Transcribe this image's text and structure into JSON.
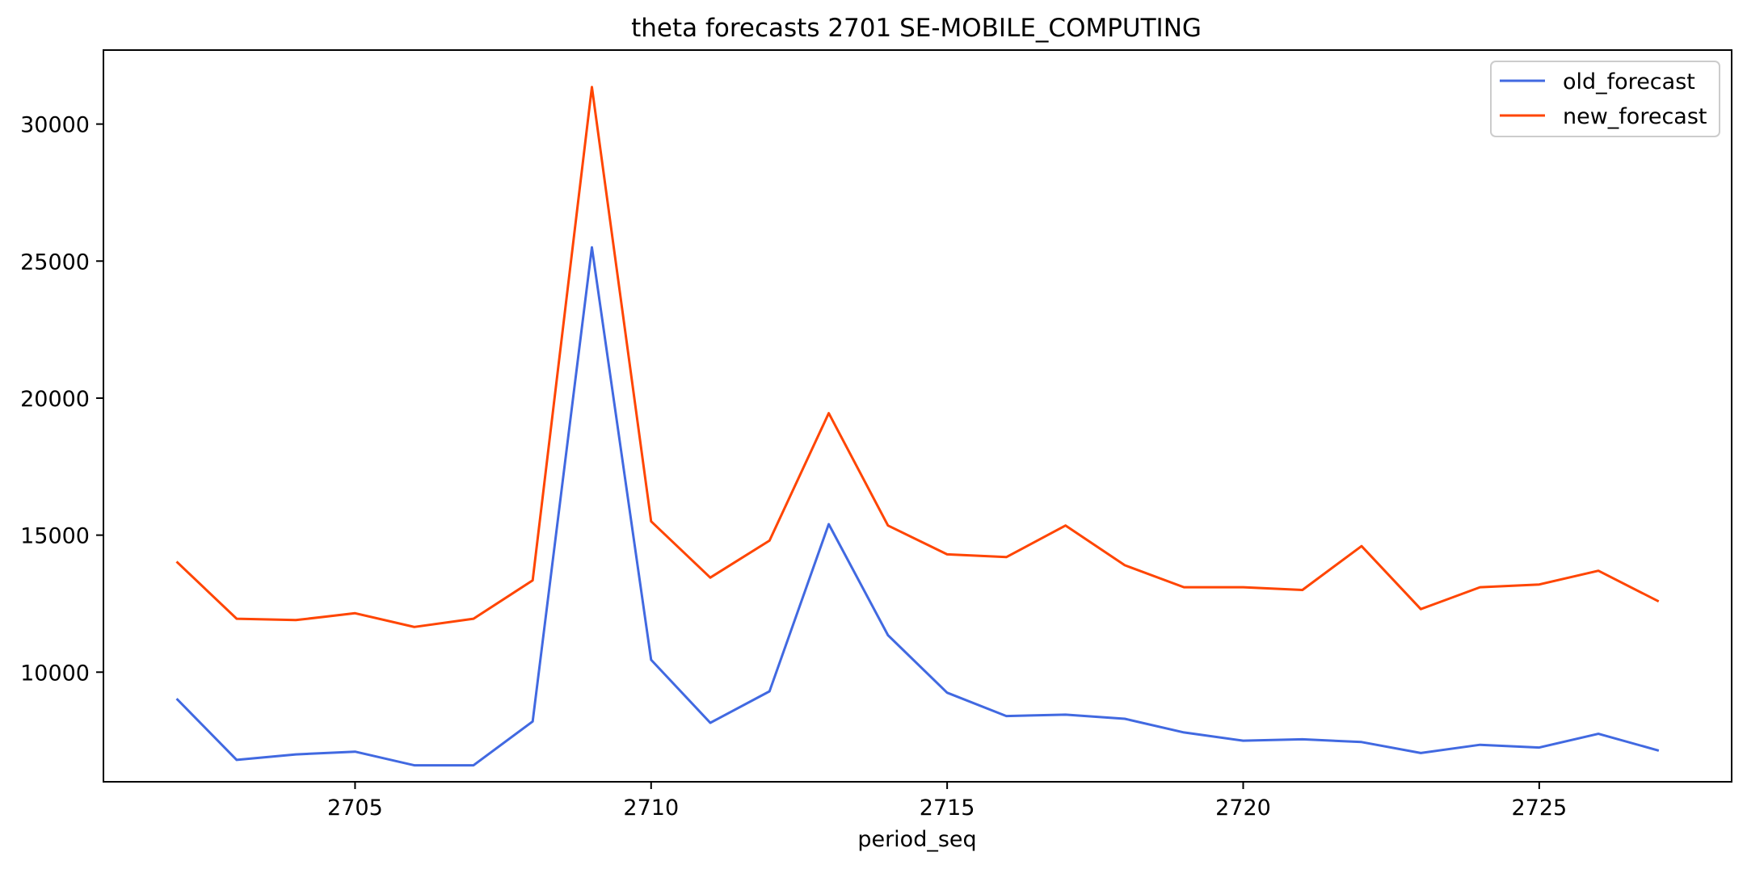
{
  "chart_data": {
    "type": "line",
    "title": "theta forecasts 2701 SE-MOBILE_COMPUTING",
    "xlabel": "period_seq",
    "ylabel": "",
    "x": [
      2702,
      2703,
      2704,
      2705,
      2706,
      2707,
      2708,
      2709,
      2710,
      2711,
      2712,
      2713,
      2714,
      2715,
      2716,
      2717,
      2718,
      2719,
      2720,
      2721,
      2722,
      2723,
      2724,
      2725,
      2726,
      2727
    ],
    "xlim": [
      2700.75,
      2728.25
    ],
    "ylim": [
      6000,
      32700
    ],
    "xticks": [
      "2705",
      "2710",
      "2715",
      "2720",
      "2725"
    ],
    "yticks": [
      "10000",
      "15000",
      "20000",
      "25000",
      "30000"
    ],
    "grid": false,
    "legend_position": "top-right",
    "series": [
      {
        "name": "old_forecast",
        "color": "#4169e1",
        "values": [
          9000,
          6800,
          7000,
          7100,
          6600,
          6600,
          8200,
          25500,
          10450,
          8150,
          9300,
          15400,
          11350,
          9250,
          8400,
          8450,
          8300,
          7800,
          7500,
          7550,
          7450,
          7050,
          7350,
          7250,
          7750,
          7150
        ]
      },
      {
        "name": "new_forecast",
        "color": "#ff4500",
        "values": [
          14000,
          11950,
          11900,
          12150,
          11650,
          11950,
          13350,
          31350,
          15500,
          13450,
          14800,
          19450,
          15350,
          14300,
          14200,
          15350,
          13900,
          13100,
          13100,
          13000,
          14600,
          12300,
          13100,
          13200,
          13700,
          12600
        ]
      }
    ]
  }
}
